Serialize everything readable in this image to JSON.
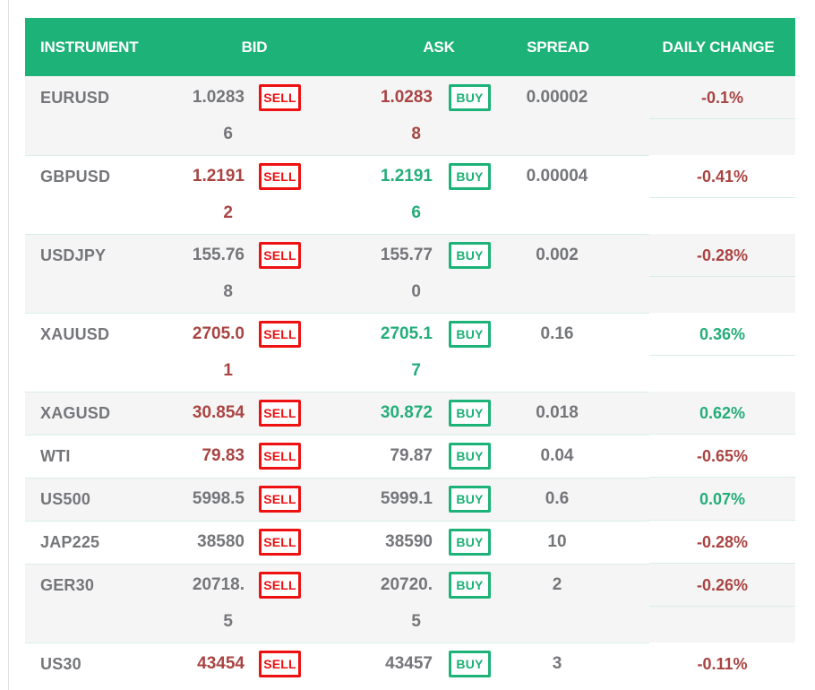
{
  "header": {
    "instrument": "INSTRUMENT",
    "bid": "BID",
    "ask": "ASK",
    "spread": "SPREAD",
    "daily_change": "DAILY CHANGE"
  },
  "buttons": {
    "sell": "SELL",
    "buy": "BUY"
  },
  "colors": {
    "header_bg": "#1db277",
    "up_green": "#24ad79",
    "down_red": "#a94442",
    "neutral_gray": "#75767a",
    "sell_button_red": "#ee1111",
    "buy_button_green": "#1db277",
    "row_alt_bg": "#f5f5f6",
    "separator": "#d9eee5"
  },
  "rows": [
    {
      "instrument": "EURUSD",
      "bid_l1": "1.0283",
      "bid_l2": "6",
      "bid_dir": "neutral",
      "ask_l1": "1.0283",
      "ask_l2": "8",
      "ask_dir": "down",
      "spread": "0.00002",
      "change": "-0.1%",
      "change_dir": "down"
    },
    {
      "instrument": "GBPUSD",
      "bid_l1": "1.2191",
      "bid_l2": "2",
      "bid_dir": "down",
      "ask_l1": "1.2191",
      "ask_l2": "6",
      "ask_dir": "up",
      "spread": "0.00004",
      "change": "-0.41%",
      "change_dir": "down"
    },
    {
      "instrument": "USDJPY",
      "bid_l1": "155.76",
      "bid_l2": "8",
      "bid_dir": "neutral",
      "ask_l1": "155.77",
      "ask_l2": "0",
      "ask_dir": "neutral",
      "spread": "0.002",
      "change": "-0.28%",
      "change_dir": "down"
    },
    {
      "instrument": "XAUUSD",
      "bid_l1": "2705.0",
      "bid_l2": "1",
      "bid_dir": "down",
      "ask_l1": "2705.1",
      "ask_l2": "7",
      "ask_dir": "up",
      "spread": "0.16",
      "change": "0.36%",
      "change_dir": "up"
    },
    {
      "instrument": "XAGUSD",
      "bid_l1": "30.854",
      "bid_l2": "",
      "bid_dir": "down",
      "ask_l1": "30.872",
      "ask_l2": "",
      "ask_dir": "up",
      "spread": "0.018",
      "change": "0.62%",
      "change_dir": "up"
    },
    {
      "instrument": "WTI",
      "bid_l1": "79.83",
      "bid_l2": "",
      "bid_dir": "down",
      "ask_l1": "79.87",
      "ask_l2": "",
      "ask_dir": "neutral",
      "spread": "0.04",
      "change": "-0.65%",
      "change_dir": "down"
    },
    {
      "instrument": "US500",
      "bid_l1": "5998.5",
      "bid_l2": "",
      "bid_dir": "neutral",
      "ask_l1": "5999.1",
      "ask_l2": "",
      "ask_dir": "neutral",
      "spread": "0.6",
      "change": "0.07%",
      "change_dir": "up"
    },
    {
      "instrument": "JAP225",
      "bid_l1": "38580",
      "bid_l2": "",
      "bid_dir": "neutral",
      "ask_l1": "38590",
      "ask_l2": "",
      "ask_dir": "neutral",
      "spread": "10",
      "change": "-0.28%",
      "change_dir": "down"
    },
    {
      "instrument": "GER30",
      "bid_l1": "20718.",
      "bid_l2": "5",
      "bid_dir": "neutral",
      "ask_l1": "20720.",
      "ask_l2": "5",
      "ask_dir": "neutral",
      "spread": "2",
      "change": "-0.26%",
      "change_dir": "down"
    },
    {
      "instrument": "US30",
      "bid_l1": "43454",
      "bid_l2": "",
      "bid_dir": "down",
      "ask_l1": "43457",
      "ask_l2": "",
      "ask_dir": "neutral",
      "spread": "3",
      "change": "-0.11%",
      "change_dir": "down"
    }
  ]
}
